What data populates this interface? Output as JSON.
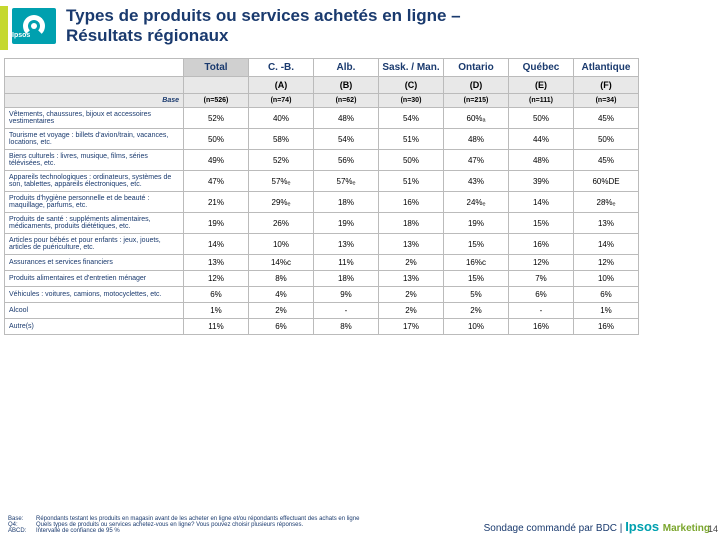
{
  "logo_text": "Ipsos",
  "title_line1": "Types de produits ou services achetés en ligne –",
  "title_line2": "Résultats régionaux",
  "columns": [
    "Total",
    "C. -B.",
    "Alb.",
    "Sask. / Man.",
    "Ontario",
    "Québec",
    "Atlantique"
  ],
  "letters": [
    "(A)",
    "(B)",
    "(C)",
    "(D)",
    "(E)",
    "(F)"
  ],
  "base_label": "Base",
  "base_values": [
    "(n=526)",
    "(n=74)",
    "(n=62)",
    "(n=30)",
    "(n=215)",
    "(n=111)",
    "(n=34)"
  ],
  "rows": [
    {
      "label": "Vêtements, chaussures, bijoux et accessoires vestimentaires",
      "v": [
        "52%",
        "40%",
        "48%",
        "54%",
        "60%ₐ",
        "50%",
        "45%"
      ]
    },
    {
      "label": "Tourisme et voyage : billets d'avion/train, vacances, locations, etc.",
      "v": [
        "50%",
        "58%",
        "54%",
        "51%",
        "48%",
        "44%",
        "50%"
      ]
    },
    {
      "label": "Biens culturels : livres, musique, films, séries télévisées, etc.",
      "v": [
        "49%",
        "52%",
        "56%",
        "50%",
        "47%",
        "48%",
        "45%"
      ]
    },
    {
      "label": "Appareils technologiques : ordinateurs, systèmes de son, tablettes, appareils électroniques, etc.",
      "v": [
        "47%",
        "57%ₑ",
        "57%ₑ",
        "51%",
        "43%",
        "39%",
        "60%DE"
      ]
    },
    {
      "label": "Produits d'hygiène personnelle et de beauté : maquillage, parfums, etc.",
      "v": [
        "21%",
        "29%ₑ",
        "18%",
        "16%",
        "24%ₑ",
        "14%",
        "28%ₑ"
      ]
    },
    {
      "label": "Produits de santé : suppléments alimentaires, médicaments, produits diététiques, etc.",
      "v": [
        "19%",
        "26%",
        "19%",
        "18%",
        "19%",
        "15%",
        "13%"
      ]
    },
    {
      "label": "Articles pour bébés et pour enfants : jeux, jouets, articles de puériculture, etc.",
      "v": [
        "14%",
        "10%",
        "13%",
        "13%",
        "15%",
        "16%",
        "14%"
      ]
    },
    {
      "label": "Assurances et services financiers",
      "v": [
        "13%",
        "14%c",
        "11%",
        "2%",
        "16%c",
        "12%",
        "12%"
      ]
    },
    {
      "label": "Produits alimentaires et d'entretien ménager",
      "v": [
        "12%",
        "8%",
        "18%",
        "13%",
        "15%",
        "7%",
        "10%"
      ]
    },
    {
      "label": "Véhicules : voitures, camions, motocyclettes, etc.",
      "v": [
        "6%",
        "4%",
        "9%",
        "2%",
        "5%",
        "6%",
        "6%"
      ]
    },
    {
      "label": "Alcool",
      "v": [
        "1%",
        "2%",
        "-",
        "2%",
        "2%",
        "-",
        "1%"
      ]
    },
    {
      "label": "Autre(s)",
      "v": [
        "11%",
        "6%",
        "8%",
        "17%",
        "10%",
        "16%",
        "16%"
      ]
    }
  ],
  "foot": {
    "base_lbl": "Base:",
    "base_txt": "Répondants testant les produits en magasin avant de les acheter en ligne et/ou répondants effectuant des achats en ligne",
    "q_lbl": "Q4:",
    "q_txt": "Quels types de produits ou services achetez-vous en ligne? Vous pouvez choisir plusieurs réponses.",
    "abcd_lbl": "ABCD:",
    "abcd_txt": "Intervalle de confiance de 95 %"
  },
  "sponsor": "Sondage commandé par BDC  |",
  "brand_main": "Ipsos ",
  "brand_sub": "Marketing",
  "page": "14"
}
